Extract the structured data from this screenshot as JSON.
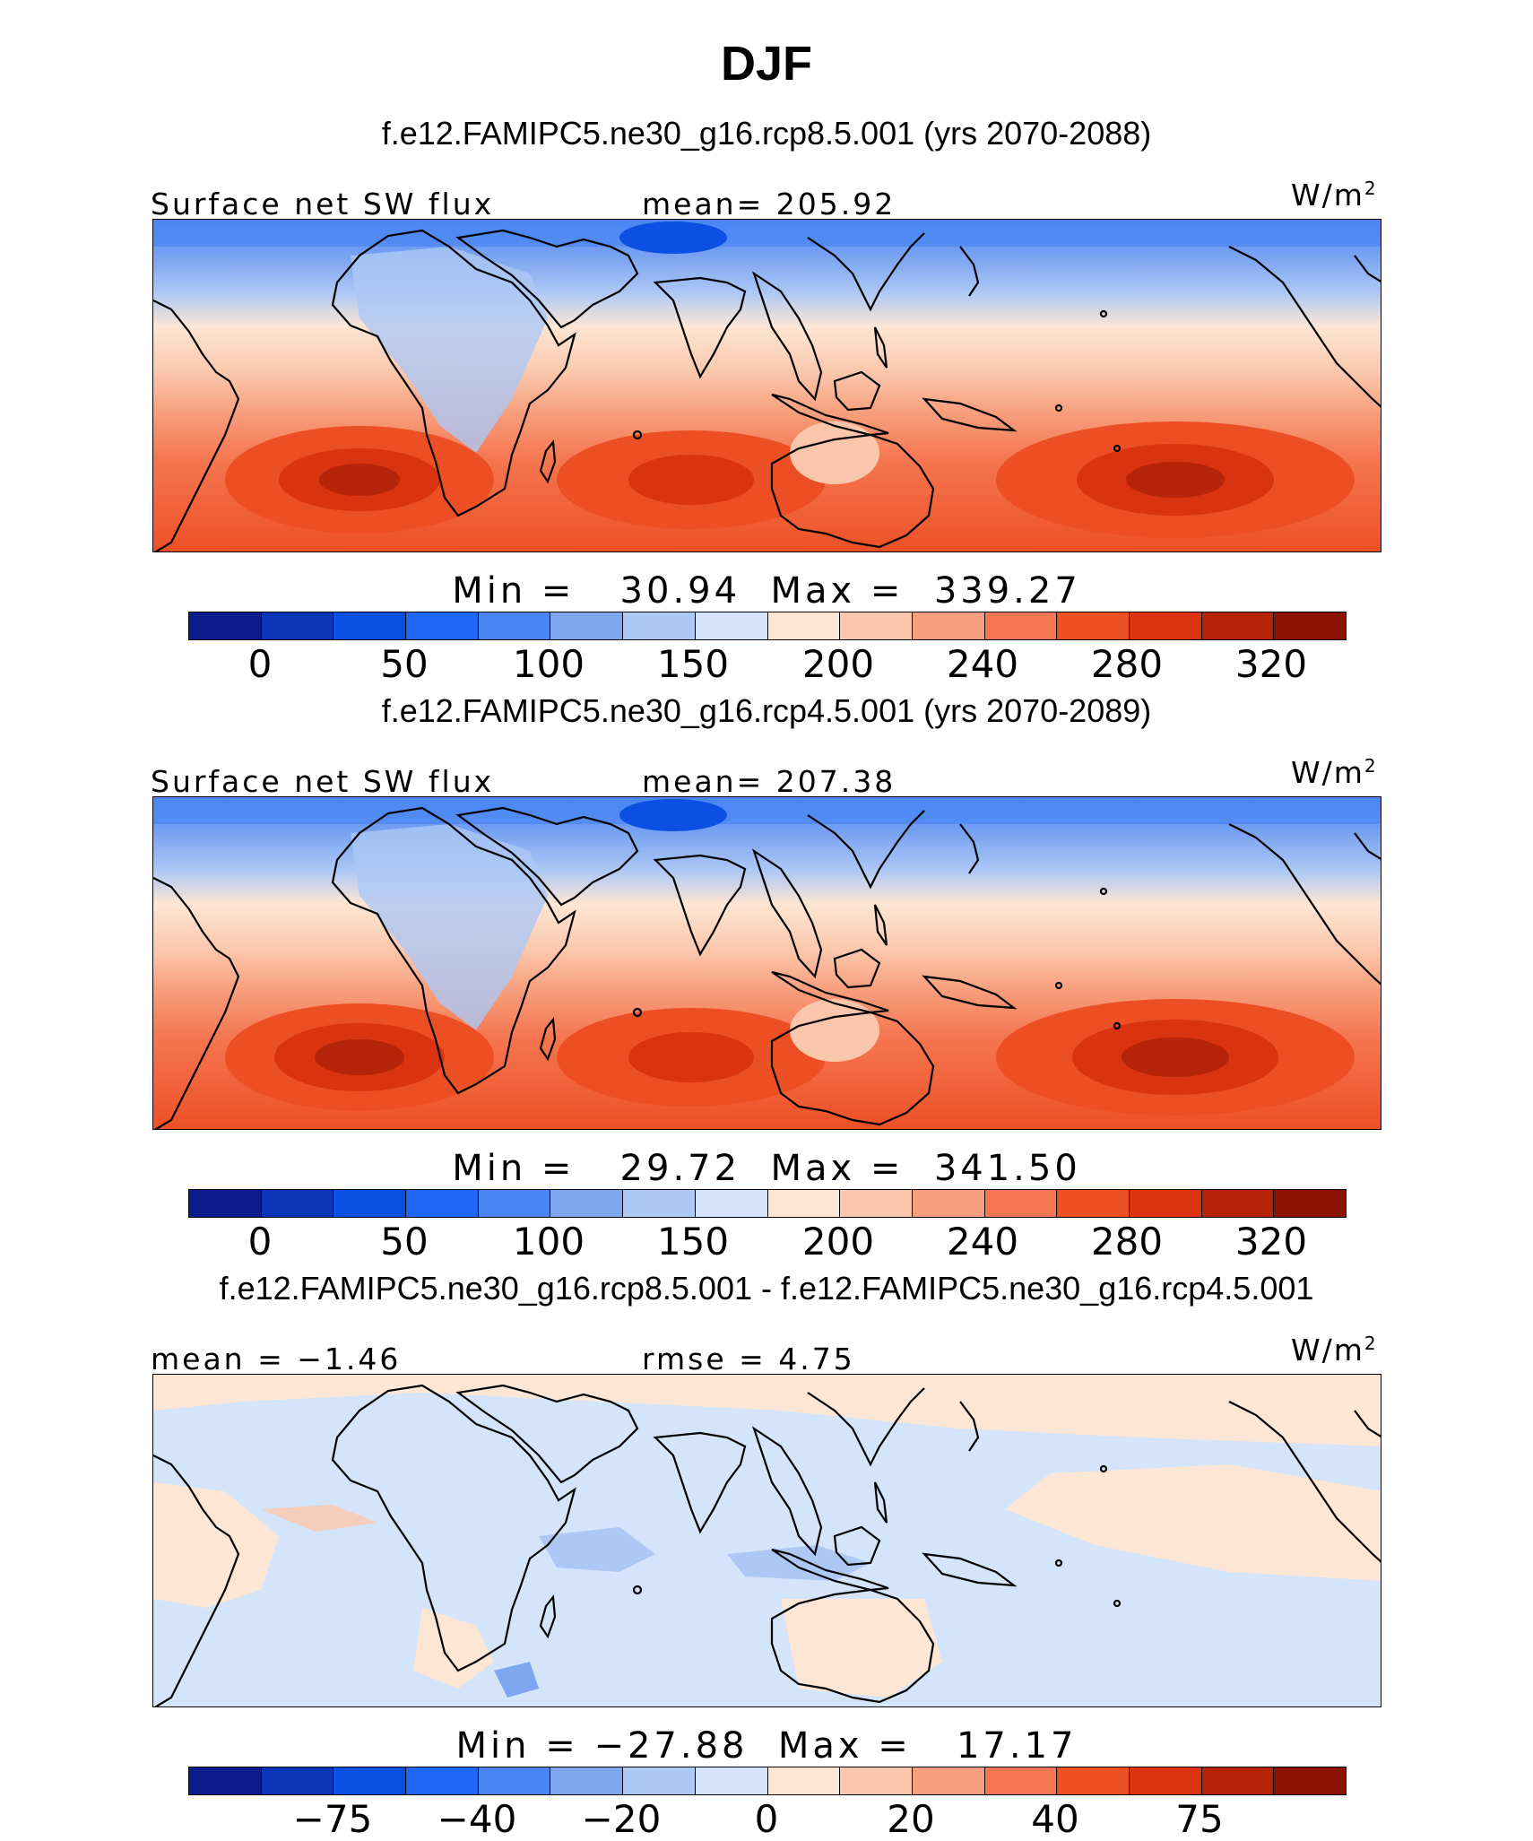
{
  "title": "DJF",
  "panels": [
    {
      "case_title": "f.e12.FAMIPC5.ne30_g16.rcp8.5.001 (yrs 2070-2088)",
      "left_label": "Surface net SW flux",
      "center_label": "mean=  205.92",
      "units": "W/m",
      "units_exp": "2",
      "minmax": "Min =   30.94  Max =  339.27",
      "colorbar": [
        "#0b1a8c",
        "#0a36b7",
        "#0b4fe3",
        "#1f66f5",
        "#4a86f3",
        "#7ea6f1",
        "#adc8f5",
        "#d4e4fa",
        "#fde6d4",
        "#fbc7ac",
        "#f79e7c",
        "#f57650",
        "#ed4f25",
        "#d9330f",
        "#b52309",
        "#8c1303"
      ],
      "ticks": [
        "0",
        "50",
        "100",
        "150",
        "200",
        "240",
        "280",
        "320"
      ]
    },
    {
      "case_title": "f.e12.FAMIPC5.ne30_g16.rcp4.5.001 (yrs 2070-2089)",
      "left_label": "Surface net SW flux",
      "center_label": "mean=  207.38",
      "units": "W/m",
      "units_exp": "2",
      "minmax": "Min =   29.72  Max =  341.50",
      "colorbar": [
        "#0b1a8c",
        "#0a36b7",
        "#0b4fe3",
        "#1f66f5",
        "#4a86f3",
        "#7ea6f1",
        "#adc8f5",
        "#d4e4fa",
        "#fde6d4",
        "#fbc7ac",
        "#f79e7c",
        "#f57650",
        "#ed4f25",
        "#d9330f",
        "#b52309",
        "#8c1303"
      ],
      "ticks": [
        "0",
        "50",
        "100",
        "150",
        "200",
        "240",
        "280",
        "320"
      ]
    },
    {
      "case_title": "f.e12.FAMIPC5.ne30_g16.rcp8.5.001 - f.e12.FAMIPC5.ne30_g16.rcp4.5.001",
      "left_label": "mean =  −1.46",
      "center_label": "rmse =    4.75",
      "units": "W/m",
      "units_exp": "2",
      "minmax": "Min = −27.88  Max =   17.17",
      "colorbar": [
        "#0b1a8c",
        "#0a36b7",
        "#0b4fe3",
        "#1f66f5",
        "#4a86f3",
        "#7ea6f1",
        "#adc8f5",
        "#d4e4fa",
        "#fde6d4",
        "#fbc7ac",
        "#f79e7c",
        "#f57650",
        "#ed4f25",
        "#d9330f",
        "#b52309",
        "#8c1303"
      ],
      "ticks": [
        "−75",
        "−40",
        "−20",
        "0",
        "20",
        "40",
        "75"
      ]
    }
  ]
}
